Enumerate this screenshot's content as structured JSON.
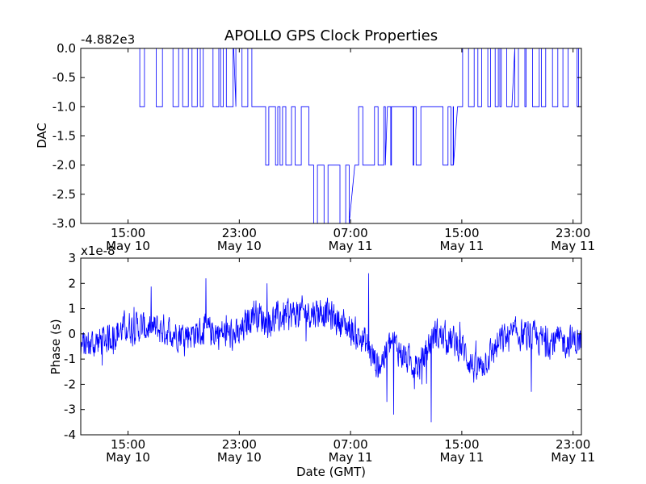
{
  "title": "APOLLO GPS Clock Properties",
  "colors": {
    "line": "#0000ff",
    "axes": "#000000",
    "background": "#ffffff"
  },
  "chart_data": [
    {
      "type": "line",
      "ylabel": "DAC",
      "offset_text": "-4.882e3",
      "ylim": [
        -3.0,
        0.0
      ],
      "yticks": [
        0.0,
        -0.5,
        -1.0,
        -1.5,
        -2.0,
        -2.5,
        -3.0
      ],
      "ytick_labels": [
        "0.0",
        "-0.5",
        "-1.0",
        "-1.5",
        "-2.0",
        "-2.5",
        "-3.0"
      ],
      "x_units": "hours since May 10 00:00 GMT",
      "xlim": [
        11.6,
        47.6
      ],
      "xticks": [
        15,
        23,
        31,
        39,
        47
      ],
      "xtick_labels": [
        [
          "15:00",
          "May 10"
        ],
        [
          "23:00",
          "May 10"
        ],
        [
          "07:00",
          "May 11"
        ],
        [
          "15:00",
          "May 11"
        ],
        [
          "23:00",
          "May 11"
        ]
      ],
      "description_segments": [
        {
          "from": 15.5,
          "to": 19.5,
          "levels": [
            0,
            -1
          ]
        },
        {
          "from": 19.5,
          "to": 22.6,
          "levels": [
            0,
            -1
          ]
        },
        {
          "from": 22.6,
          "to": 24.5,
          "levels": [
            -1,
            0
          ]
        },
        {
          "from": 24.5,
          "to": 28.0,
          "levels": [
            -1,
            -2
          ]
        },
        {
          "from": 28.0,
          "to": 30.9,
          "levels": [
            -2,
            -3
          ]
        },
        {
          "from": 30.9,
          "to": 33.5,
          "levels": [
            -2,
            -1
          ]
        },
        {
          "from": 33.5,
          "to": 38.4,
          "levels": [
            -1,
            -2
          ]
        },
        {
          "from": 38.4,
          "to": 42.6,
          "levels": [
            -1,
            0
          ]
        },
        {
          "from": 42.6,
          "to": 47.6,
          "levels": [
            0,
            -1
          ]
        }
      ],
      "series": [
        {
          "values_note": "DAC steps between integer levels 0 and -3"
        }
      ]
    },
    {
      "type": "line",
      "ylabel": "Phase (s)",
      "xlabel": "Date (GMT)",
      "offset_text": "x1e-8",
      "ylim": [
        -4,
        3
      ],
      "yticks": [
        3,
        2,
        1,
        0,
        -1,
        -2,
        -3,
        -4
      ],
      "ytick_labels": [
        "3",
        "2",
        "1",
        "0",
        "-1",
        "-2",
        "-3",
        "-4"
      ],
      "x_units": "hours since May 10 00:00 GMT",
      "xlim": [
        11.6,
        47.6
      ],
      "xticks": [
        15,
        23,
        31,
        39,
        47
      ],
      "xtick_labels": [
        [
          "15:00",
          "May 10"
        ],
        [
          "23:00",
          "May 10"
        ],
        [
          "07:00",
          "May 11"
        ],
        [
          "15:00",
          "May 11"
        ],
        [
          "23:00",
          "May 11"
        ]
      ],
      "trend": {
        "x": [
          11.6,
          13.0,
          15.0,
          17.0,
          19.0,
          21.0,
          23.0,
          24.0,
          25.0,
          27.0,
          29.0,
          30.5,
          32.0,
          33.0,
          34.0,
          35.0,
          36.0,
          37.0,
          38.0,
          39.0,
          40.0,
          42.0,
          43.0,
          45.0,
          47.6
        ],
        "mean": [
          -0.5,
          -0.3,
          0.3,
          0.2,
          0.0,
          0.1,
          -0.1,
          0.9,
          0.5,
          0.8,
          0.9,
          0.4,
          -0.3,
          -1.3,
          -0.3,
          -1.0,
          -1.3,
          0.0,
          -0.2,
          -0.5,
          -1.5,
          -0.2,
          0.0,
          -0.3,
          -0.3
        ]
      },
      "noise_amplitude": 0.55,
      "annotated_extremes": [
        {
          "x": 20.6,
          "y": 2.2
        },
        {
          "x": 25.0,
          "y": 2.0
        },
        {
          "x": 32.3,
          "y": 2.4
        },
        {
          "x": 34.1,
          "y": -3.2
        },
        {
          "x": 36.8,
          "y": -3.5
        },
        {
          "x": 33.6,
          "y": -2.7
        },
        {
          "x": 44.0,
          "y": -2.3
        }
      ]
    }
  ]
}
